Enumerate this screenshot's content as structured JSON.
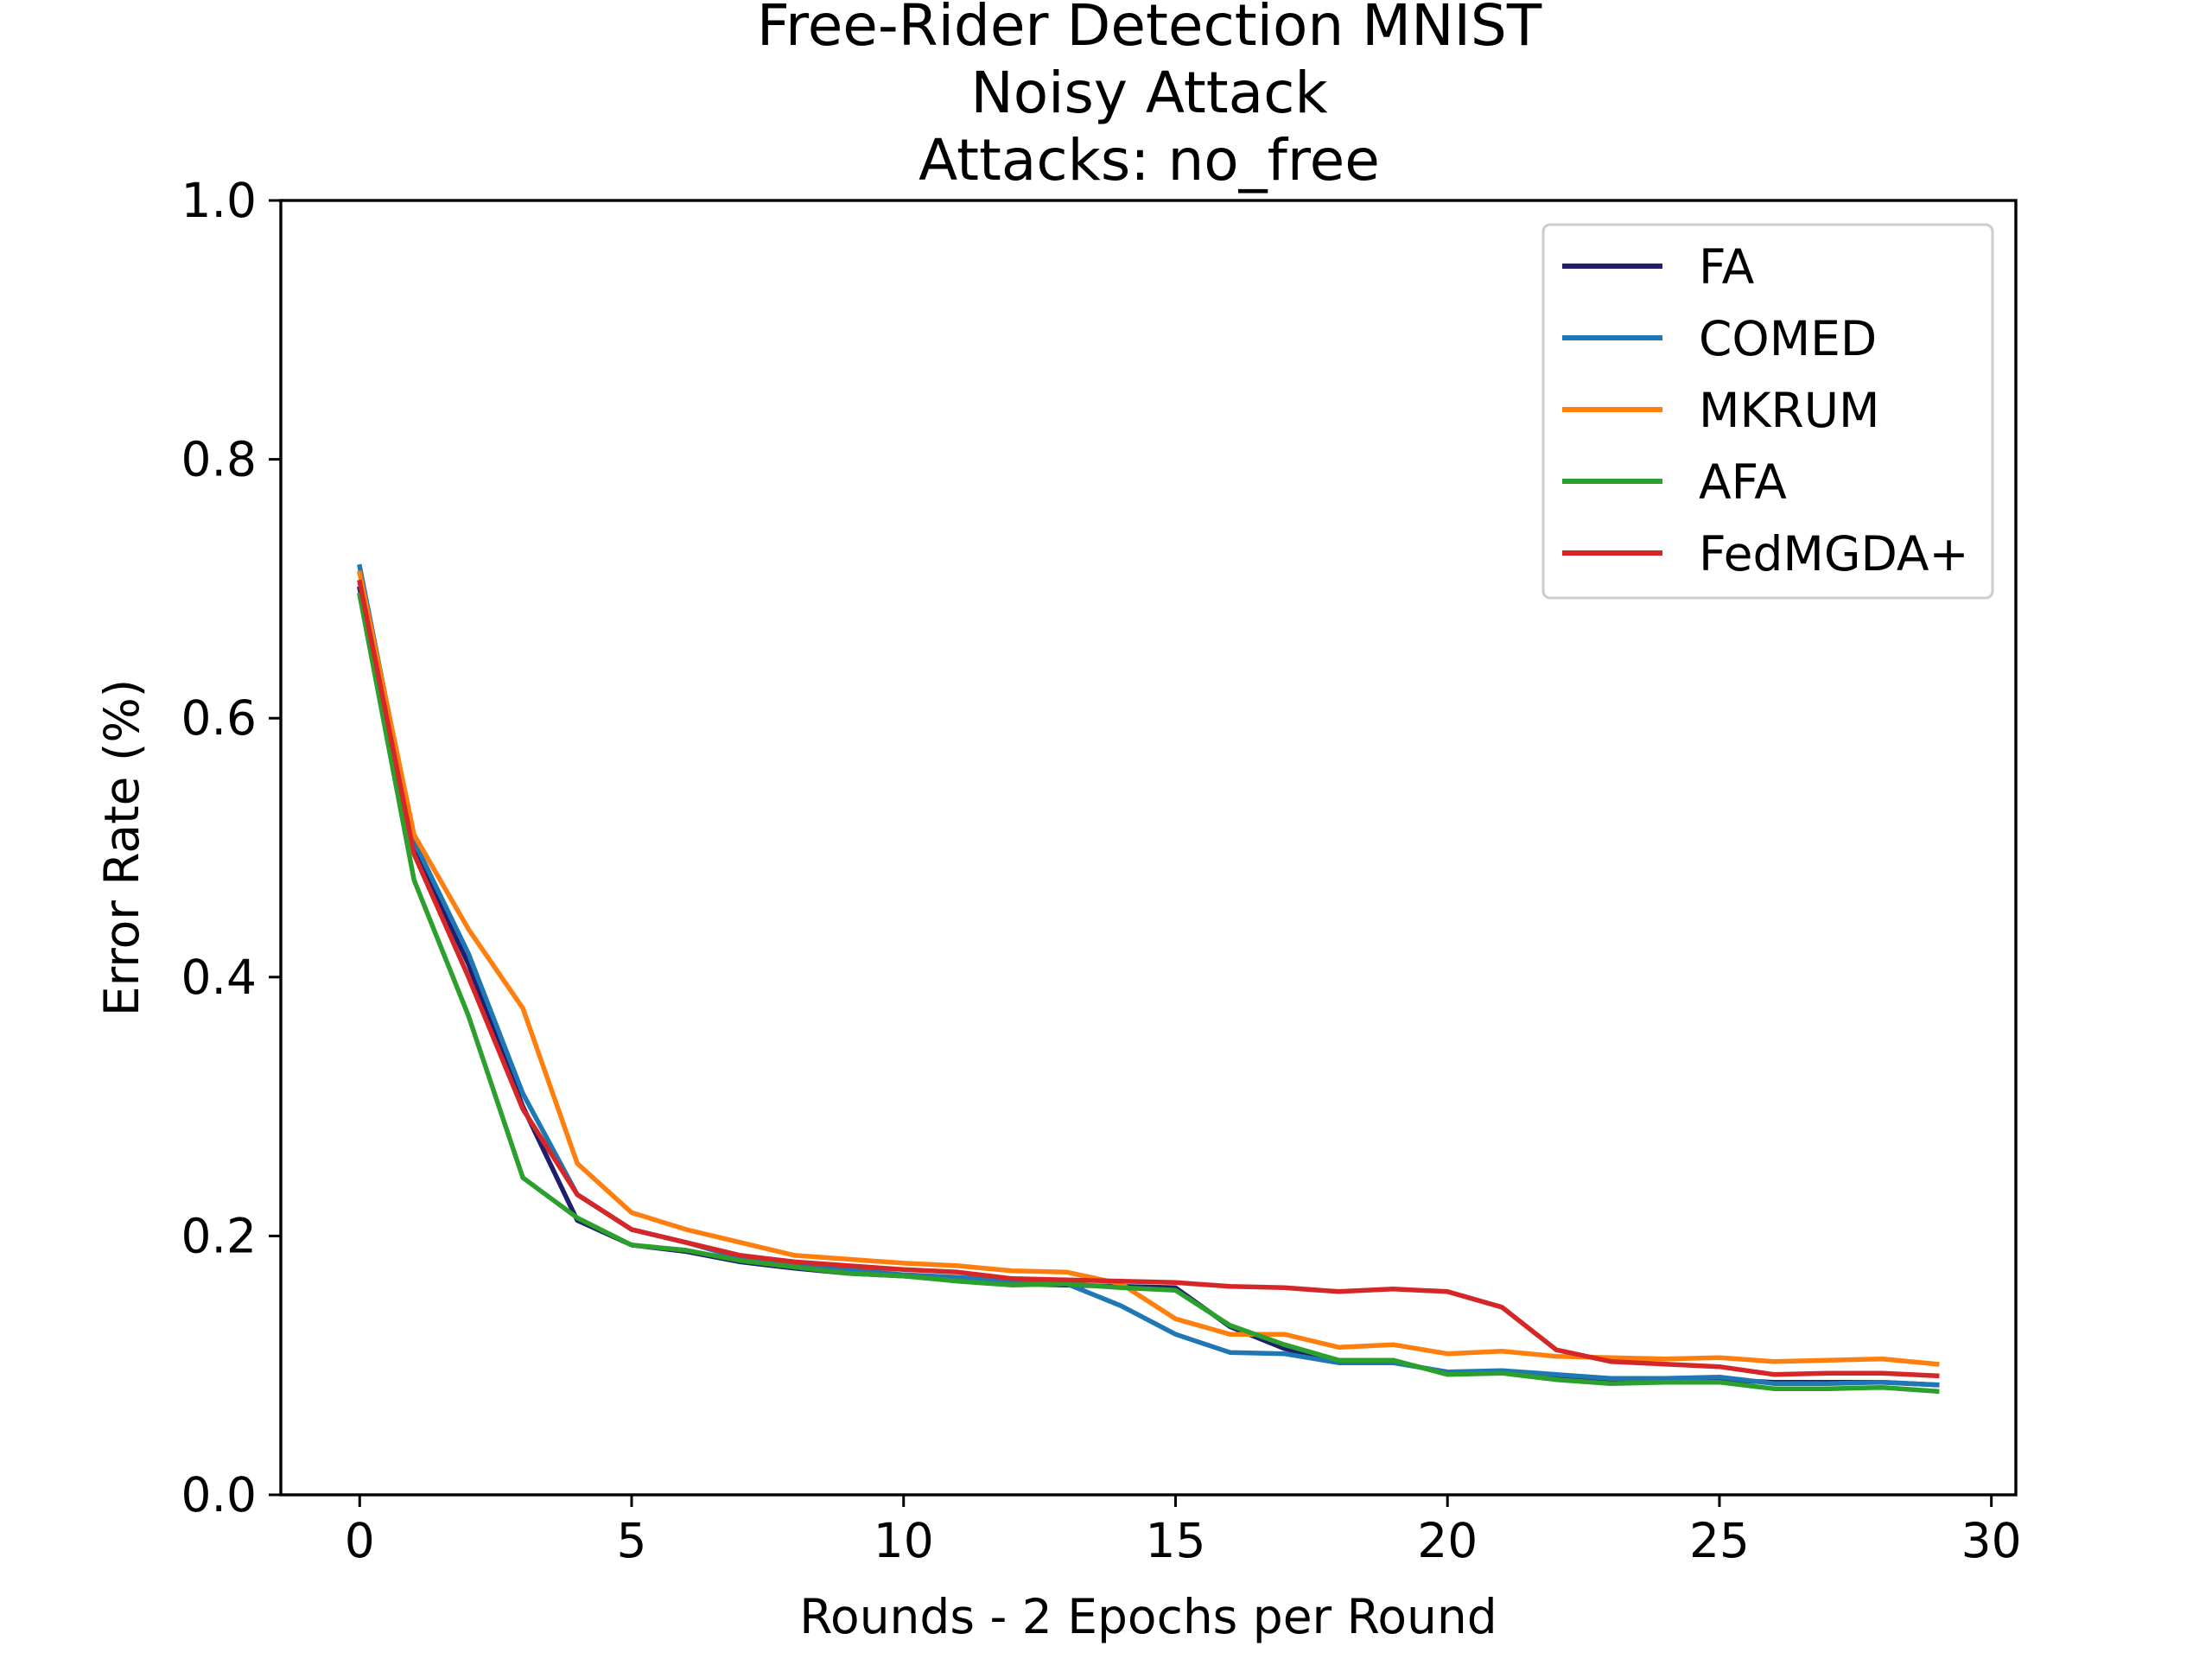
{
  "chart_data": {
    "type": "line",
    "title_lines": [
      "Free-Rider Detection MNIST",
      "Noisy Attack",
      "Attacks: no_free"
    ],
    "xlabel": "Rounds - 2 Epochs per Round",
    "ylabel": "Error Rate (%)",
    "xlim": [
      -1.45,
      30.45
    ],
    "ylim": [
      0.0,
      1.0
    ],
    "xticks": [
      0,
      5,
      10,
      15,
      20,
      25,
      30
    ],
    "xtick_labels": [
      "0",
      "5",
      "10",
      "15",
      "20",
      "25",
      "30"
    ],
    "yticks": [
      0.0,
      0.2,
      0.4,
      0.6,
      0.8,
      1.0
    ],
    "ytick_labels": [
      "0.0",
      "0.2",
      "0.4",
      "0.6",
      "0.8",
      "1.0"
    ],
    "grid": false,
    "legend_position": "top-right",
    "x": [
      0,
      1,
      2,
      3,
      4,
      5,
      6,
      7,
      8,
      9,
      10,
      11,
      12,
      13,
      14,
      15,
      16,
      17,
      18,
      19,
      20,
      21,
      22,
      23,
      24,
      25,
      26,
      27,
      28,
      29
    ],
    "series": [
      {
        "name": "FA",
        "color": "#1f1f6e",
        "values": [
          0.7,
          0.5,
          0.41,
          0.3,
          0.212,
          0.193,
          0.188,
          0.18,
          0.175,
          0.171,
          0.169,
          0.166,
          0.163,
          0.162,
          0.161,
          0.16,
          0.13,
          0.113,
          0.103,
          0.103,
          0.094,
          0.095,
          0.09,
          0.088,
          0.089,
          0.089,
          0.087,
          0.087,
          0.087,
          0.085
        ]
      },
      {
        "name": "COMED",
        "color": "#1f77b4",
        "values": [
          0.717,
          0.505,
          0.418,
          0.31,
          0.232,
          0.205,
          0.195,
          0.183,
          0.178,
          0.174,
          0.17,
          0.168,
          0.165,
          0.163,
          0.146,
          0.124,
          0.11,
          0.109,
          0.102,
          0.102,
          0.095,
          0.096,
          0.093,
          0.09,
          0.09,
          0.091,
          0.086,
          0.086,
          0.087,
          0.085
        ]
      },
      {
        "name": "MKRUM",
        "color": "#ff7f0e",
        "values": [
          0.712,
          0.51,
          0.437,
          0.376,
          0.256,
          0.218,
          0.205,
          0.195,
          0.185,
          0.182,
          0.179,
          0.177,
          0.173,
          0.172,
          0.163,
          0.136,
          0.124,
          0.124,
          0.114,
          0.116,
          0.109,
          0.111,
          0.107,
          0.106,
          0.105,
          0.106,
          0.103,
          0.104,
          0.105,
          0.101
        ]
      },
      {
        "name": "AFA",
        "color": "#2ca02c",
        "values": [
          0.695,
          0.475,
          0.37,
          0.245,
          0.214,
          0.193,
          0.189,
          0.181,
          0.176,
          0.171,
          0.169,
          0.165,
          0.162,
          0.163,
          0.16,
          0.158,
          0.131,
          0.116,
          0.104,
          0.104,
          0.093,
          0.094,
          0.089,
          0.086,
          0.087,
          0.087,
          0.082,
          0.082,
          0.083,
          0.08
        ]
      },
      {
        "name": "FedMGDA+",
        "color": "#d62728",
        "values": [
          0.705,
          0.495,
          0.4,
          0.298,
          0.232,
          0.205,
          0.195,
          0.185,
          0.18,
          0.177,
          0.174,
          0.172,
          0.167,
          0.166,
          0.165,
          0.164,
          0.161,
          0.16,
          0.157,
          0.159,
          0.157,
          0.145,
          0.112,
          0.103,
          0.101,
          0.099,
          0.093,
          0.094,
          0.094,
          0.092
        ]
      }
    ]
  }
}
